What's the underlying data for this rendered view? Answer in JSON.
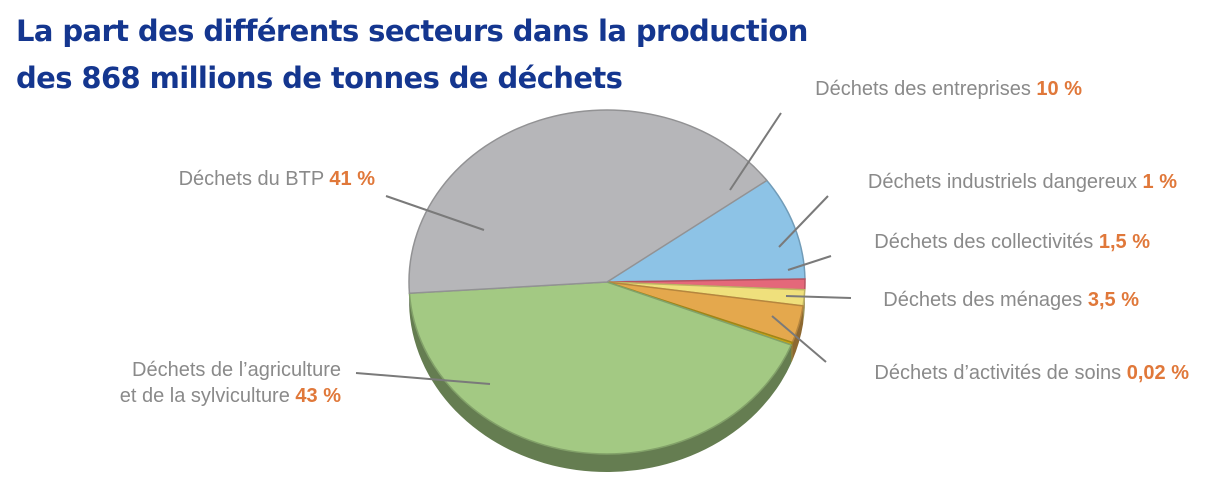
{
  "chart_data": {
    "type": "pie",
    "title_lines": [
      "La part des différents secteurs dans la production",
      "des 868 millions de tonnes de déchets"
    ],
    "slices": [
      {
        "label": "Déchets des entreprises",
        "value": 10,
        "value_label": "10 %",
        "color": "#8dc3e6"
      },
      {
        "label": "Déchets industriels dangereux",
        "value": 1,
        "value_label": "1 %",
        "color": "#e4687a"
      },
      {
        "label": "Déchets des collectivités",
        "value": 1.5,
        "value_label": "1,5 %",
        "color": "#efe07c"
      },
      {
        "label": "Déchets des ménages",
        "value": 3.5,
        "value_label": "3,5 %",
        "color": "#e4a84d"
      },
      {
        "label": "Déchets d’activités de soins",
        "value": 0.02,
        "value_label": "0,02 %",
        "color": "#c9a81a"
      },
      {
        "label": "Déchets de l’agriculture et de la sylviculture",
        "label_lines": [
          "Déchets de l’agriculture",
          "et de la sylviculture"
        ],
        "value": 43,
        "value_label": "43 %",
        "color": "#a3c983"
      },
      {
        "label": "Déchets du BTP",
        "value": 41,
        "value_label": "41 %",
        "color": "#b6b6b9"
      }
    ]
  }
}
